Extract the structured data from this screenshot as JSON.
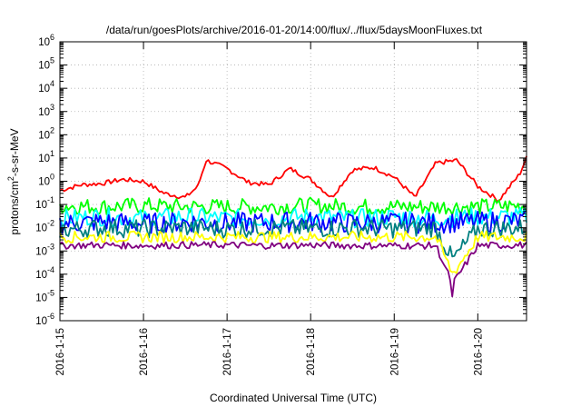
{
  "chart_data": {
    "type": "line",
    "title": "/data/run/goesPlots/archive/2016-01-20/14:00/flux/../flux/5daysMoonFluxes.txt",
    "xlabel": "Coordinated Universal Time (UTC)",
    "ylabel_parts": [
      "protons/cm",
      "2",
      "-s-sr-MeV"
    ],
    "yscale": "log",
    "ylim": [
      1e-06,
      1000000.0
    ],
    "y_ticks": [
      {
        "exp": "-6"
      },
      {
        "exp": "-5"
      },
      {
        "exp": "-4"
      },
      {
        "exp": "-3"
      },
      {
        "exp": "-2"
      },
      {
        "exp": "-1"
      },
      {
        "exp": "0"
      },
      {
        "exp": "1"
      },
      {
        "exp": "2"
      },
      {
        "exp": "3"
      },
      {
        "exp": "4"
      },
      {
        "exp": "5"
      },
      {
        "exp": "6"
      }
    ],
    "xlim": [
      "2016-01-15 00:00",
      "2016-01-20 14:00"
    ],
    "x_ticks": [
      "2016-1-15",
      "2016-1-16",
      "2016-1-17",
      "2016-1-18",
      "2016-1-19",
      "2016-1-20"
    ],
    "grid": true,
    "series": [
      {
        "color": "#ff0000",
        "x": [
          0,
          0.25,
          0.5,
          0.75,
          1.0,
          1.25,
          1.5,
          1.65,
          1.75,
          2.0,
          2.25,
          2.5,
          2.75,
          3.0,
          3.25,
          3.5,
          3.75,
          4.0,
          4.25,
          4.5,
          4.75,
          5.0,
          5.25,
          5.5,
          5.58
        ],
        "y": [
          0.4,
          0.7,
          0.8,
          1.2,
          1.0,
          0.3,
          0.2,
          0.6,
          8,
          3.5,
          0.9,
          0.7,
          3.5,
          1.2,
          0.2,
          3,
          4,
          1.5,
          0.2,
          6,
          8,
          0.6,
          0.15,
          2,
          10
        ]
      },
      {
        "color": "#00ff00",
        "x": [
          0,
          0.5,
          1,
          1.5,
          2,
          2.5,
          3,
          3.5,
          4,
          4.5,
          5,
          5.58
        ],
        "y": [
          0.09,
          0.08,
          0.09,
          0.08,
          0.08,
          0.08,
          0.09,
          0.08,
          0.08,
          0.08,
          0.08,
          0.09
        ]
      },
      {
        "color": "#00ffff",
        "x": [
          0,
          0.5,
          1,
          1.5,
          2,
          2.5,
          3,
          3.5,
          4,
          4.5,
          5,
          5.58
        ],
        "y": [
          0.025,
          0.03,
          0.025,
          0.03,
          0.025,
          0.025,
          0.03,
          0.025,
          0.03,
          0.025,
          0.03,
          0.03
        ]
      },
      {
        "color": "#0000ff",
        "x": [
          0,
          0.5,
          1,
          1.5,
          2,
          2.5,
          3,
          3.5,
          4,
          4.5,
          5,
          5.58
        ],
        "y": [
          0.015,
          0.018,
          0.015,
          0.018,
          0.016,
          0.017,
          0.018,
          0.016,
          0.017,
          0.016,
          0.018,
          0.02
        ]
      },
      {
        "color": "#008080",
        "x": [
          0,
          0.5,
          1,
          1.5,
          2,
          2.5,
          3,
          3.5,
          4,
          4.5,
          4.7,
          5,
          5.58
        ],
        "y": [
          0.008,
          0.01,
          0.009,
          0.01,
          0.009,
          0.01,
          0.009,
          0.01,
          0.009,
          0.01,
          0.0004,
          0.009,
          0.01
        ]
      },
      {
        "color": "#ffff00",
        "x": [
          0,
          0.5,
          1,
          1.5,
          2,
          2.5,
          3,
          3.5,
          4,
          4.5,
          4.7,
          5,
          5.58
        ],
        "y": [
          0.004,
          0.004,
          0.004,
          0.004,
          0.004,
          0.004,
          0.004,
          0.004,
          0.004,
          0.004,
          0.0001,
          0.004,
          0.004
        ]
      },
      {
        "color": "#800080",
        "x": [
          0,
          0.5,
          1,
          1.5,
          2,
          2.5,
          3,
          3.5,
          4,
          4.5,
          4.68,
          4.7,
          4.72,
          5,
          5.58
        ],
        "y": [
          0.0017,
          0.0018,
          0.0017,
          0.0018,
          0.0018,
          0.0017,
          0.0018,
          0.0017,
          0.0017,
          0.0017,
          5e-05,
          5e-06,
          5e-05,
          0.0017,
          0.0018
        ]
      }
    ]
  }
}
